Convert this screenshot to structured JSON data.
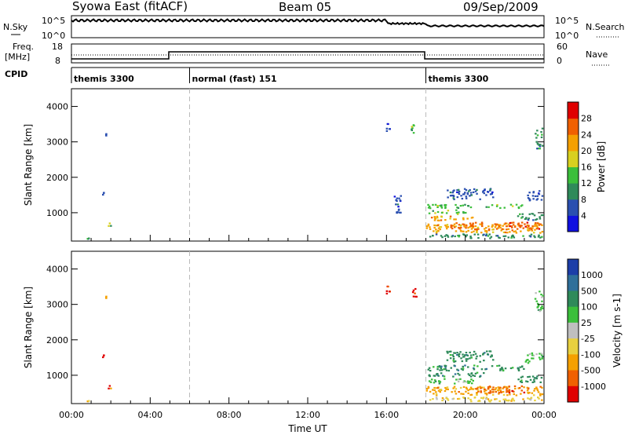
{
  "header": {
    "title": "Syowa East (fitACF)",
    "beam": "Beam 05",
    "date": "09/Sep/2009"
  },
  "status_panels": {
    "nsky_label": "N.Sky",
    "nsearch_label": "N.Search",
    "nsky_ticks": [
      "10^5",
      "10^0"
    ],
    "nsearch_ticks": [
      "10^5",
      "10^0"
    ],
    "freq_label": "Freq.",
    "freq_unit": "[MHz]",
    "freq_ticks": [
      "18",
      "8"
    ],
    "nave_label": "Nave",
    "nave_ticks": [
      "60",
      "0"
    ],
    "cpid_label": "CPID",
    "cpid_segments": [
      {
        "label": "themis 3300",
        "start_hour": 0
      },
      {
        "label": "normal (fast) 151",
        "start_hour": 6
      },
      {
        "label": "themis 3300",
        "start_hour": 18
      }
    ]
  },
  "chart_data": [
    {
      "type": "heatmap",
      "name": "power",
      "ylabel": "Slant Range [km]",
      "yticks": [
        "1000",
        "2000",
        "3000",
        "4000"
      ],
      "ylim": [
        200,
        4500
      ],
      "xlim": [
        0,
        24
      ],
      "xticks": [
        "00:00",
        "04:00",
        "08:00",
        "12:00",
        "16:00",
        "20:00",
        "00:00"
      ],
      "colorbar": {
        "label": "Power [dB]",
        "ticks": [
          "4",
          "8",
          "12",
          "16",
          "20",
          "24",
          "28"
        ],
        "colors": [
          "#1010e0",
          "#2a4fb0",
          "#2f8a5a",
          "#3bbf3b",
          "#d8d020",
          "#f5a000",
          "#f06000",
          "#e00000"
        ]
      },
      "blobs": [
        {
          "x": [
            0.6,
            1.0
          ],
          "y": [
            240,
            340
          ],
          "level": 2
        },
        {
          "x": [
            1.8,
            2.0
          ],
          "y": [
            600,
            750
          ],
          "level": 3
        },
        {
          "x": [
            1.5,
            1.6
          ],
          "y": [
            1500,
            1600
          ],
          "level": 1
        },
        {
          "x": [
            1.7,
            1.8
          ],
          "y": [
            3200,
            3300
          ],
          "level": 1
        },
        {
          "x": [
            15.9,
            16.2
          ],
          "y": [
            3300,
            3550
          ],
          "level": 1
        },
        {
          "x": [
            16.3,
            16.7
          ],
          "y": [
            950,
            1500
          ],
          "level": 1
        },
        {
          "x": [
            17.2,
            17.5
          ],
          "y": [
            3200,
            3500
          ],
          "level": 3
        },
        {
          "x": [
            18.0,
            23.9
          ],
          "y": [
            300,
            420
          ],
          "level": 2
        },
        {
          "x": [
            18.0,
            23.9
          ],
          "y": [
            450,
            700
          ],
          "level": 5
        },
        {
          "x": [
            19.2,
            23.8
          ],
          "y": [
            550,
            750
          ],
          "level": 6
        },
        {
          "x": [
            18.1,
            20.4
          ],
          "y": [
            800,
            920
          ],
          "level": 5
        },
        {
          "x": [
            18.1,
            20.0
          ],
          "y": [
            980,
            1100
          ],
          "level": 3
        },
        {
          "x": [
            18.0,
            23.0
          ],
          "y": [
            1150,
            1250
          ],
          "level": 3
        },
        {
          "x": [
            19.0,
            21.4
          ],
          "y": [
            1400,
            1700
          ],
          "level": 1
        },
        {
          "x": [
            23.1,
            23.9
          ],
          "y": [
            1350,
            1650
          ],
          "level": 1
        },
        {
          "x": [
            22.6,
            23.9
          ],
          "y": [
            800,
            1000
          ],
          "level": 2
        },
        {
          "x": [
            23.5,
            23.9
          ],
          "y": [
            2800,
            3400
          ],
          "level": 2
        }
      ]
    },
    {
      "type": "heatmap",
      "name": "velocity",
      "ylabel": "Slant Range [km]",
      "yticks": [
        "1000",
        "2000",
        "3000",
        "4000"
      ],
      "ylim": [
        200,
        4500
      ],
      "xlim": [
        0,
        24
      ],
      "xlabel": "Time UT",
      "xticks": [
        "00:00",
        "04:00",
        "08:00",
        "12:00",
        "16:00",
        "20:00",
        "00:00"
      ],
      "colorbar": {
        "label": "Velocity [m s-1]",
        "ticks": [
          "1000",
          "500",
          "100",
          "25",
          "-25",
          "-100",
          "-500",
          "-1000"
        ],
        "colors": [
          "#1c3ea8",
          "#2f6f9a",
          "#2f8a5a",
          "#3bbf3b",
          "#bfbfbf",
          "#e8d040",
          "#f5a000",
          "#f06000",
          "#e00000"
        ]
      },
      "blobs": [
        {
          "x": [
            0.6,
            1.0
          ],
          "y": [
            240,
            340
          ],
          "level": 5
        },
        {
          "x": [
            1.8,
            2.0
          ],
          "y": [
            600,
            750
          ],
          "level": 7
        },
        {
          "x": [
            1.5,
            1.6
          ],
          "y": [
            1500,
            1600
          ],
          "level": 8
        },
        {
          "x": [
            1.7,
            1.8
          ],
          "y": [
            3200,
            3300
          ],
          "level": 6
        },
        {
          "x": [
            15.9,
            16.2
          ],
          "y": [
            3300,
            3550
          ],
          "level": 8
        },
        {
          "x": [
            17.2,
            17.5
          ],
          "y": [
            3200,
            3500
          ],
          "level": 8
        },
        {
          "x": [
            18.0,
            23.9
          ],
          "y": [
            280,
            400
          ],
          "level": 5
        },
        {
          "x": [
            18.0,
            23.9
          ],
          "y": [
            450,
            700
          ],
          "level": 6
        },
        {
          "x": [
            20.5,
            23.0
          ],
          "y": [
            520,
            720
          ],
          "level": 7
        },
        {
          "x": [
            18.1,
            20.4
          ],
          "y": [
            780,
            920
          ],
          "level": 3
        },
        {
          "x": [
            18.1,
            21.0
          ],
          "y": [
            980,
            1100
          ],
          "level": 2
        },
        {
          "x": [
            18.0,
            23.0
          ],
          "y": [
            1150,
            1300
          ],
          "level": 2
        },
        {
          "x": [
            19.0,
            21.4
          ],
          "y": [
            1400,
            1700
          ],
          "level": 2
        },
        {
          "x": [
            23.0,
            23.9
          ],
          "y": [
            1350,
            1650
          ],
          "level": 3
        },
        {
          "x": [
            22.6,
            23.9
          ],
          "y": [
            800,
            1000
          ],
          "level": 2
        },
        {
          "x": [
            23.5,
            23.9
          ],
          "y": [
            2800,
            3400
          ],
          "level": 3
        }
      ]
    }
  ]
}
